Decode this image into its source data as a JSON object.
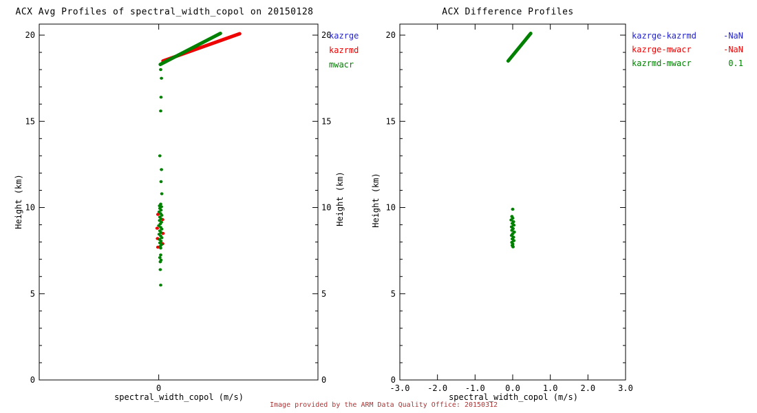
{
  "footer": {
    "text": "Image provided by the ARM Data Quality Office: 20150312",
    "color": "#aa3333"
  },
  "colors": {
    "kazrge": "#2222cc",
    "kazrmd": "#ee0000",
    "mwacr": "#008000",
    "axis": "#000000",
    "background": "#ffffff"
  },
  "chart_data": [
    {
      "type": "scatter",
      "title": "ACX Avg Profiles of spectral_width_copol on 20150128",
      "xlabel": "spectral_width_copol (m/s)",
      "ylabel": "Height (km)",
      "ylabel_right": "Height (km)",
      "xlim": [
        -3.1,
        4.13
      ],
      "ylim": [
        0,
        20.64
      ],
      "x_ticks": [
        {
          "v": 0,
          "label": "0"
        }
      ],
      "y_ticks": [
        {
          "v": 0,
          "label": "0"
        },
        {
          "v": 5,
          "label": "5"
        },
        {
          "v": 10,
          "label": "10"
        },
        {
          "v": 15,
          "label": "15"
        },
        {
          "v": 20,
          "label": "20"
        }
      ],
      "y_minor_step": 1,
      "y_labels_right": true,
      "legend_position": "right-top",
      "grid": false,
      "legend": [
        {
          "label": "kazrge",
          "color": "#2222cc"
        },
        {
          "label": "kazrmd",
          "color": "#ee0000"
        },
        {
          "label": "mwacr",
          "color": "#008000"
        }
      ],
      "series": [
        {
          "name": "kazrmd-profile-line",
          "type": "line",
          "color": "#ee0000",
          "width": 5,
          "points": [
            [
              0.11,
              18.5
            ],
            [
              2.1,
              20.08
            ]
          ]
        },
        {
          "name": "kazrmd-profile-dots",
          "type": "dots",
          "color": "#ee0000",
          "rx": 2.6,
          "ry": 2.2,
          "points": [
            [
              -0.02,
              9.6
            ],
            [
              0.1,
              9.3
            ],
            [
              -0.04,
              8.8
            ],
            [
              0.11,
              8.5
            ],
            [
              -0.03,
              8.2
            ],
            [
              0.1,
              7.9
            ],
            [
              -0.02,
              7.7
            ]
          ]
        },
        {
          "name": "mwacr-profile-line",
          "type": "line",
          "color": "#008000",
          "width": 5,
          "points": [
            [
              0.04,
              18.3
            ],
            [
              1.6,
              20.1
            ]
          ]
        },
        {
          "name": "mwacr-profile-dots",
          "type": "dots",
          "color": "#008000",
          "rx": 2.4,
          "ry": 2.1,
          "points": [
            [
              0.05,
              18.0
            ],
            [
              0.07,
              17.5
            ],
            [
              0.06,
              16.4
            ],
            [
              0.05,
              15.6
            ],
            [
              0.03,
              13.0
            ],
            [
              0.07,
              12.2
            ],
            [
              0.06,
              11.5
            ],
            [
              0.08,
              10.8
            ],
            [
              0.05,
              10.2
            ],
            [
              0.02,
              10.1
            ],
            [
              0.07,
              10.05
            ],
            [
              0.03,
              9.95
            ],
            [
              0.06,
              9.85
            ],
            [
              0.01,
              9.75
            ],
            [
              0.05,
              9.65
            ],
            [
              0.08,
              9.55
            ],
            [
              0.03,
              9.45
            ],
            [
              0.06,
              9.35
            ],
            [
              0.02,
              9.25
            ],
            [
              0.07,
              9.15
            ],
            [
              0.04,
              9.05
            ],
            [
              0.0,
              8.95
            ],
            [
              0.05,
              8.85
            ],
            [
              0.08,
              8.75
            ],
            [
              0.03,
              8.65
            ],
            [
              0.06,
              8.55
            ],
            [
              0.01,
              8.45
            ],
            [
              0.05,
              8.35
            ],
            [
              0.08,
              8.25
            ],
            [
              0.02,
              8.15
            ],
            [
              0.06,
              8.05
            ],
            [
              0.03,
              7.95
            ],
            [
              0.07,
              7.85
            ],
            [
              0.04,
              7.75
            ],
            [
              0.05,
              7.65
            ],
            [
              0.05,
              7.25
            ],
            [
              0.03,
              7.1
            ],
            [
              0.06,
              6.95
            ],
            [
              0.04,
              6.85
            ],
            [
              0.04,
              6.4
            ],
            [
              0.05,
              5.5
            ]
          ]
        }
      ]
    },
    {
      "type": "scatter",
      "title": "ACX Difference Profiles",
      "xlabel": "spectral_width_copol (m/s)",
      "ylabel": "Height (km)",
      "xlim": [
        -3,
        3
      ],
      "ylim": [
        0,
        20.64
      ],
      "x_ticks": [
        {
          "v": -3,
          "label": "-3.0"
        },
        {
          "v": -2,
          "label": "-2.0"
        },
        {
          "v": -1,
          "label": "-1.0"
        },
        {
          "v": 0,
          "label": "0.0"
        },
        {
          "v": 1,
          "label": "1.0"
        },
        {
          "v": 2,
          "label": "2.0"
        },
        {
          "v": 3,
          "label": "3.0"
        }
      ],
      "y_ticks": [
        {
          "v": 0,
          "label": "0"
        },
        {
          "v": 5,
          "label": "5"
        },
        {
          "v": 10,
          "label": "10"
        },
        {
          "v": 15,
          "label": "15"
        },
        {
          "v": 20,
          "label": "20"
        }
      ],
      "y_minor_step": 1,
      "y_labels_right": false,
      "legend_position": "right-top",
      "grid": false,
      "legend": [
        {
          "label": "kazrge-kazrmd",
          "value": "-NaN",
          "color": "#2222cc"
        },
        {
          "label": "kazrge-mwacr",
          "value": "-NaN",
          "color": "#ee0000"
        },
        {
          "label": "kazrmd-mwacr",
          "value": "0.1",
          "color": "#008000"
        }
      ],
      "series": [
        {
          "name": "kazrmd-mwacr-diff-line",
          "type": "line",
          "color": "#008000",
          "width": 5,
          "points": [
            [
              -0.12,
              18.5
            ],
            [
              0.48,
              20.1
            ]
          ]
        },
        {
          "name": "kazrmd-mwacr-diff-dots",
          "type": "dots",
          "color": "#008000",
          "rx": 2.5,
          "ry": 2.2,
          "points": [
            [
              0.0,
              9.9
            ],
            [
              -0.02,
              9.48
            ],
            [
              0.0,
              9.38
            ],
            [
              -0.04,
              9.28
            ],
            [
              0.02,
              9.18
            ],
            [
              -0.01,
              9.08
            ],
            [
              0.03,
              8.98
            ],
            [
              -0.03,
              8.88
            ],
            [
              0.01,
              8.78
            ],
            [
              -0.02,
              8.68
            ],
            [
              0.04,
              8.58
            ],
            [
              0.0,
              8.48
            ],
            [
              -0.03,
              8.38
            ],
            [
              0.02,
              8.28
            ],
            [
              -0.01,
              8.18
            ],
            [
              0.03,
              8.08
            ],
            [
              -0.02,
              7.98
            ],
            [
              0.0,
              7.88
            ],
            [
              -0.01,
              7.8
            ],
            [
              0.01,
              7.72
            ]
          ]
        }
      ]
    }
  ]
}
